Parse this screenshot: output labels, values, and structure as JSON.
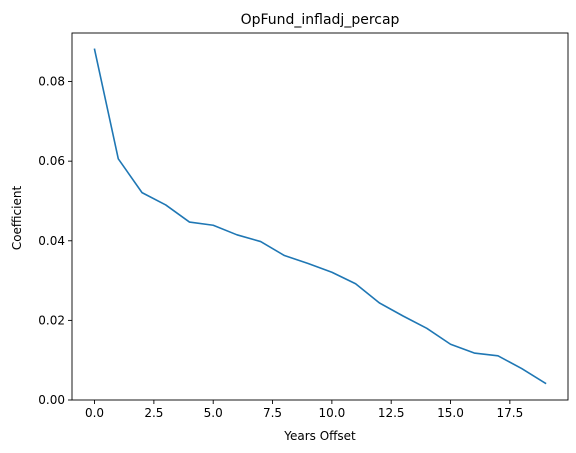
{
  "chart_data": {
    "type": "line",
    "title": "OpFund_infladj_percap",
    "xlabel": "Years Offset",
    "ylabel": "Coefficient",
    "xlim": [
      -0.95,
      19.95
    ],
    "ylim": [
      0.0,
      0.0922
    ],
    "xticks": [
      0.0,
      2.5,
      5.0,
      7.5,
      10.0,
      12.5,
      15.0,
      17.5
    ],
    "xtick_labels": [
      "0.0",
      "2.5",
      "5.0",
      "7.5",
      "10.0",
      "12.5",
      "15.0",
      "17.5"
    ],
    "yticks": [
      0.0,
      0.02,
      0.04,
      0.06,
      0.08
    ],
    "ytick_labels": [
      "0.00",
      "0.02",
      "0.04",
      "0.06",
      "0.08"
    ],
    "grid": false,
    "legend": "none",
    "series": [
      {
        "color": "#1f77b4",
        "x": [
          0,
          1,
          2,
          3,
          4,
          5,
          6,
          7,
          8,
          9,
          10,
          11,
          12,
          13,
          14,
          15,
          16,
          17,
          18,
          19
        ],
        "values": [
          0.0881,
          0.0606,
          0.0521,
          0.049,
          0.0447,
          0.0439,
          0.0415,
          0.0398,
          0.0363,
          0.0343,
          0.0321,
          0.0292,
          0.0244,
          0.0211,
          0.018,
          0.014,
          0.0118,
          0.0111,
          0.0079,
          0.0042
        ]
      }
    ]
  }
}
